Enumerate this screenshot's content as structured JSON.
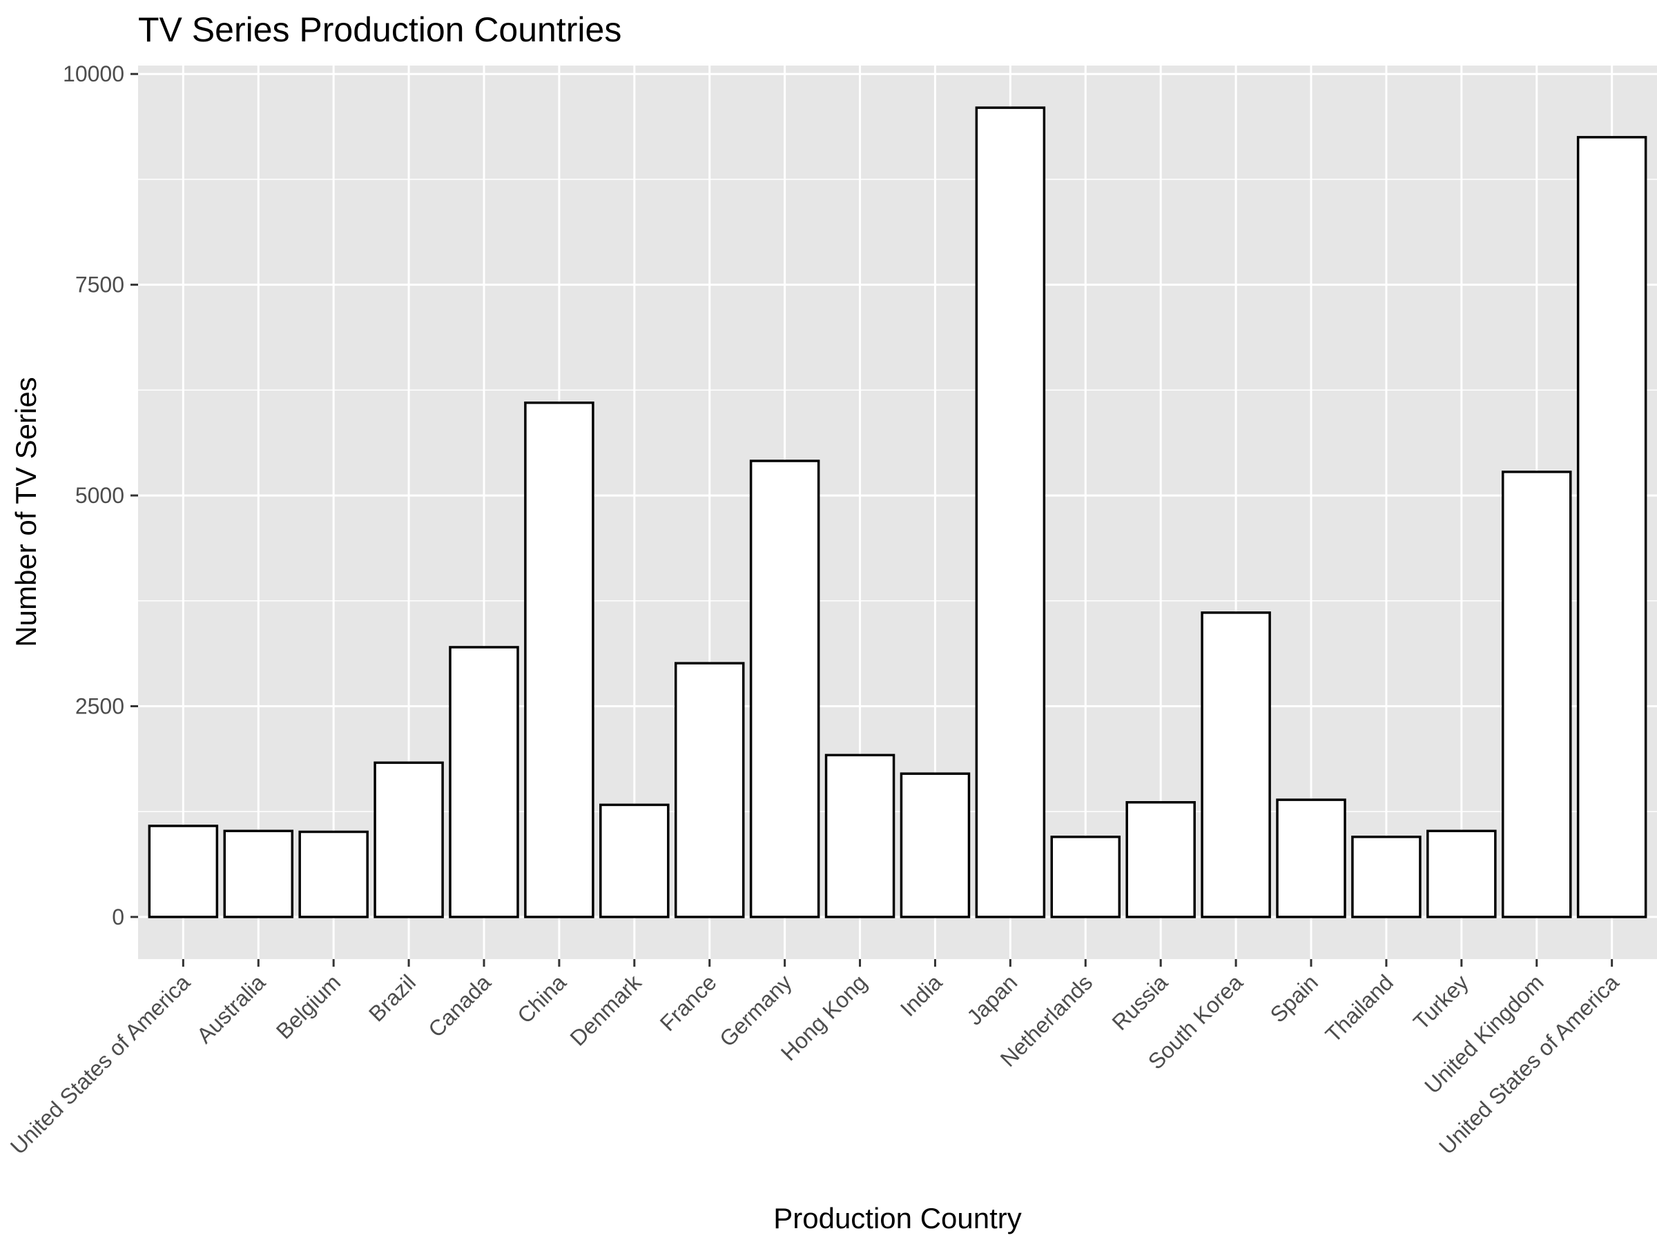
{
  "chart_data": {
    "type": "bar",
    "title": "TV Series Production Countries",
    "xlabel": "Production Country",
    "ylabel": "Number of TV Series",
    "categories": [
      "United States of America",
      "Australia",
      "Belgium",
      "Brazil",
      "Canada",
      "China",
      "Denmark",
      "France",
      "Germany",
      "Hong Kong",
      "India",
      "Japan",
      "Netherlands",
      "Russia",
      "South Korea",
      "Spain",
      "Thailand",
      "Turkey",
      "United Kingdom",
      "United States of America"
    ],
    "values": [
      1080,
      1020,
      1010,
      1830,
      3200,
      6100,
      1330,
      3010,
      5410,
      1920,
      1700,
      9600,
      950,
      1360,
      3610,
      1390,
      950,
      1020,
      5280,
      9250
    ],
    "ylim": [
      -500,
      10100
    ],
    "yticks": [
      0,
      2500,
      5000,
      7500,
      10000
    ],
    "ytick_labels": [
      "0",
      "2500",
      "5000",
      "7500",
      "10000"
    ],
    "grid": true,
    "legend": "none",
    "colors": {
      "panel_background": "#e6e6e6",
      "grid": "#ffffff",
      "bar_fill": "#ffffff",
      "bar_outline": "#000000",
      "tick_label": "#4d4d4d"
    }
  }
}
